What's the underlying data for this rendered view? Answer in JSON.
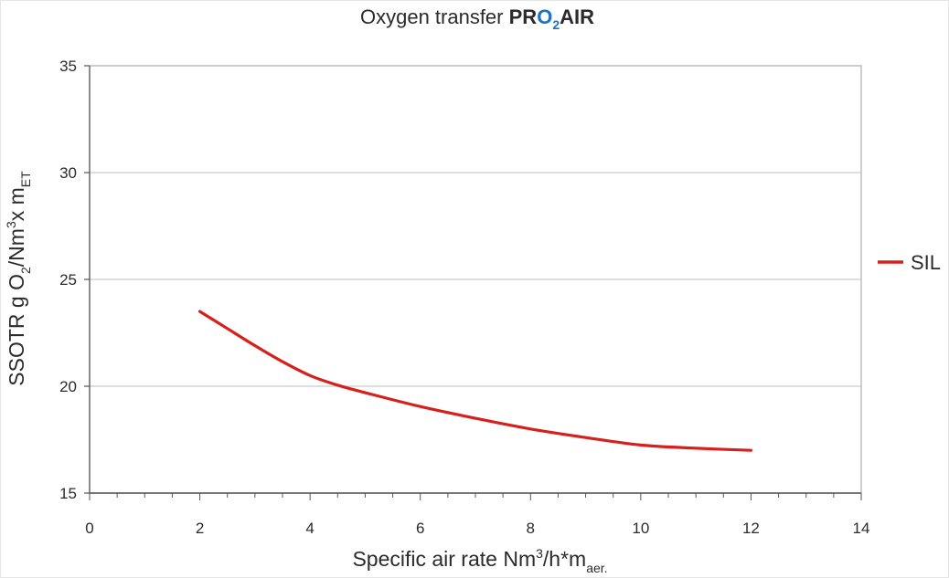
{
  "chart_data": {
    "type": "line",
    "title": {
      "prefix": "Oxygen transfer ",
      "brand_a": "PR",
      "brand_o": "O",
      "brand_sub": "2",
      "brand_b": "AIR"
    },
    "xlabel": {
      "main": "Specific air rate Nm",
      "sup": "3",
      "mid": "/h*m",
      "sub": "aer."
    },
    "ylabel": {
      "main": "SSOTR g O",
      "sub1": "2",
      "mid": "/Nm",
      "sup": "3",
      "mid2": "x m",
      "sub2": "ET"
    },
    "xlim": [
      0,
      14
    ],
    "ylim": [
      15,
      35
    ],
    "xticks": [
      0,
      2,
      4,
      6,
      8,
      10,
      12,
      14
    ],
    "yticks": [
      15,
      20,
      25,
      30,
      35
    ],
    "x_minor_step": 0.5,
    "grid": "horizontal",
    "legend_position": "right",
    "series": [
      {
        "name": "SIL",
        "x": [
          2,
          2.5,
          3,
          3.5,
          4,
          4.5,
          5,
          6,
          7,
          8,
          9,
          10,
          11,
          12
        ],
        "y": [
          23.5,
          22.7,
          21.9,
          21.15,
          20.5,
          20.05,
          19.7,
          19.05,
          18.5,
          18.0,
          17.6,
          17.25,
          17.1,
          17.0
        ]
      }
    ],
    "colors": {
      "series": "#d6201c",
      "brand_blue": "#1a73c6",
      "grid": "#bcbcbc",
      "axis": "#555555",
      "frame": "#bdbdbd"
    }
  }
}
